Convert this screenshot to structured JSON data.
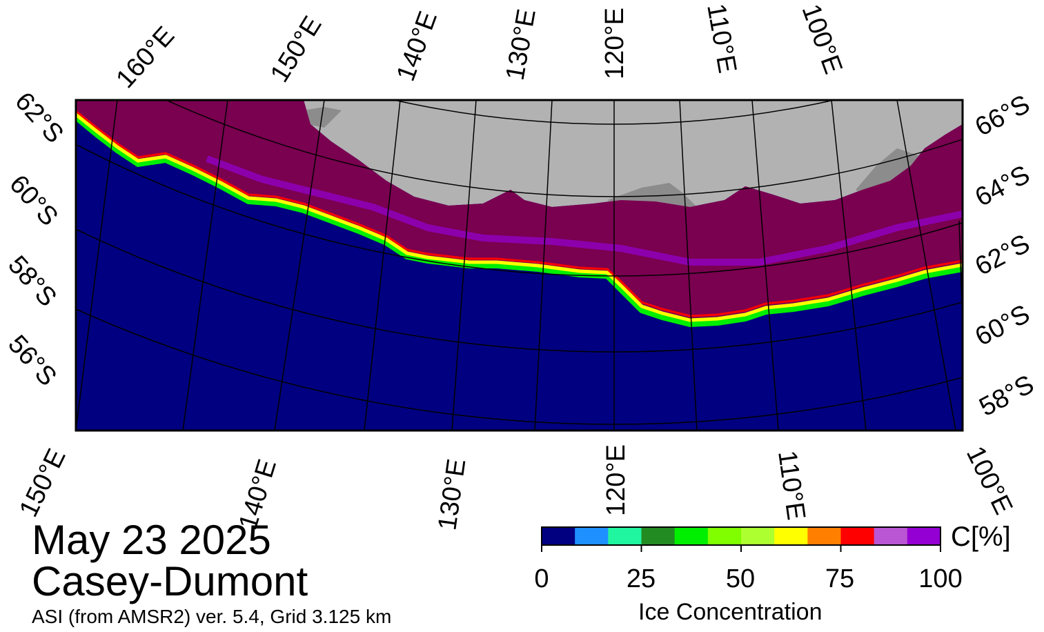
{
  "map": {
    "top_lon_labels": [
      "160°E",
      "150°E",
      "140°E",
      "130°E",
      "120°E",
      "110°E",
      "100°E"
    ],
    "bottom_lon_labels": [
      "150°E",
      "140°E",
      "130°E",
      "120°E",
      "110°E",
      "100°E"
    ],
    "left_lat_labels": [
      "62°S",
      "60°S",
      "58°S",
      "56°S"
    ],
    "right_lat_labels": [
      "66°S",
      "64°S",
      "62°S",
      "60°S",
      "58°S"
    ],
    "colors": {
      "ocean": "#000080",
      "land": "#b2b2b2",
      "ice_shelf": "#8c8c8c",
      "ice_pack": "#7a0050"
    }
  },
  "caption": {
    "date": "May 23 2025",
    "region": "Casey-Dumont",
    "source": "ASI (from AMSR2) ver. 5.4,  Grid 3.125 km"
  },
  "colorbar": {
    "title": "Ice Concentration",
    "unit": "C[%]",
    "ticks": [
      "0",
      "25",
      "50",
      "75",
      "100"
    ],
    "colors": [
      "#000080",
      "#1e90ff",
      "#20f5a0",
      "#228b22",
      "#00ee00",
      "#7fff00",
      "#adff2f",
      "#ffff00",
      "#ff7f00",
      "#ff0000",
      "#ba55d3",
      "#9400d3"
    ]
  }
}
